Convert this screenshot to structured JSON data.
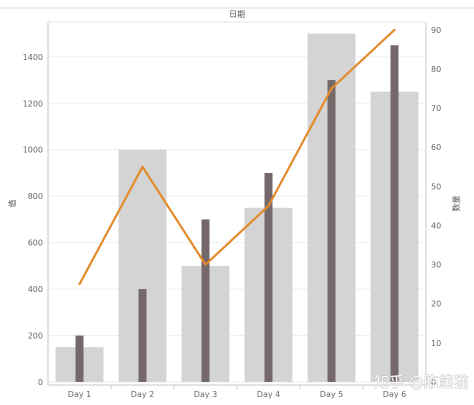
{
  "chart_data": {
    "type": "bar",
    "title": "日期",
    "categories": [
      "Day 1",
      "Day 2",
      "Day 3",
      "Day 4",
      "Day 5",
      "Day 6"
    ],
    "series": [
      {
        "kind": "bar-wide",
        "axis": "left",
        "color": "#d4d4d4",
        "values": [
          150,
          1000,
          500,
          750,
          1500,
          1250
        ]
      },
      {
        "kind": "bar-narrow",
        "axis": "left",
        "color": "#74686a",
        "values": [
          200,
          400,
          700,
          900,
          1300,
          1450
        ]
      },
      {
        "kind": "line",
        "axis": "right",
        "color": "#e38a2a",
        "values": [
          25,
          55,
          30,
          45,
          75,
          90
        ]
      }
    ],
    "ylabel": "值",
    "ylabel_right": "数量",
    "ylim": [
      0,
      1550
    ],
    "ylim_right": [
      0,
      92
    ],
    "yticks": [
      "0",
      "200",
      "400",
      "600",
      "800",
      "1000",
      "1200",
      "1400"
    ],
    "yticks_right": [
      "0",
      "10",
      "20",
      "30",
      "40",
      "50",
      "60",
      "70",
      "80",
      "90"
    ],
    "grid": true
  },
  "watermark": "知乎 @陈熊猫"
}
